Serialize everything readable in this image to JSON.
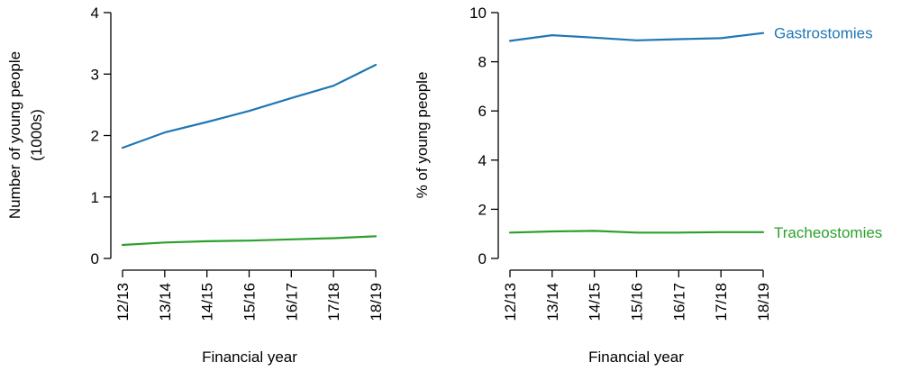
{
  "colors": {
    "gastrostomies": "#1f77b4",
    "tracheostomies": "#2ca02c"
  },
  "chart_data": [
    {
      "type": "line",
      "x": [
        "12/13",
        "13/14",
        "14/15",
        "15/16",
        "16/17",
        "17/18",
        "18/19"
      ],
      "xlabel": "Financial year",
      "ylabel": [
        "Number of young people",
        "(1000s)"
      ],
      "ylim": [
        0,
        4
      ],
      "yticks": [
        "0",
        "1",
        "2",
        "3",
        "4"
      ],
      "grid": false,
      "series": [
        {
          "key": "gastrostomies",
          "values": [
            1.8,
            2.05,
            2.22,
            2.4,
            2.61,
            2.81,
            3.15
          ]
        },
        {
          "key": "tracheostomies",
          "values": [
            0.22,
            0.26,
            0.28,
            0.29,
            0.31,
            0.33,
            0.36
          ]
        }
      ]
    },
    {
      "type": "line",
      "x": [
        "12/13",
        "13/14",
        "14/15",
        "15/16",
        "16/17",
        "17/18",
        "18/19"
      ],
      "xlabel": "Financial year",
      "ylabel": [
        "% of young people"
      ],
      "ylim": [
        0,
        10
      ],
      "yticks": [
        "0",
        "2",
        "4",
        "6",
        "8",
        "10"
      ],
      "grid": false,
      "series": [
        {
          "key": "gastrostomies",
          "name": "Gastrostomies",
          "values": [
            8.85,
            9.08,
            8.98,
            8.87,
            8.92,
            8.96,
            9.17
          ]
        },
        {
          "key": "tracheostomies",
          "name": "Tracheostomies",
          "values": [
            1.05,
            1.1,
            1.12,
            1.05,
            1.05,
            1.07,
            1.07
          ]
        }
      ]
    }
  ]
}
